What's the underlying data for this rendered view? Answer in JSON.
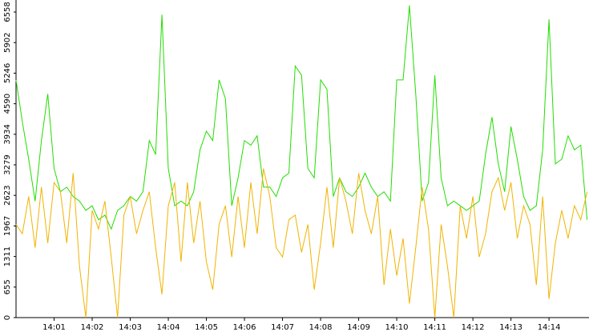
{
  "chart_data": {
    "type": "line",
    "x": [
      0,
      10,
      20,
      30,
      40,
      50,
      60,
      70,
      80,
      90,
      100,
      110,
      120,
      130,
      140,
      150,
      160,
      170,
      180,
      190,
      200,
      210,
      220,
      230,
      240,
      250,
      260,
      270,
      280,
      290,
      300,
      310,
      320,
      330,
      340,
      350,
      360,
      370,
      380,
      390,
      400,
      410,
      420,
      430,
      440,
      450,
      460,
      470,
      480,
      490,
      500,
      510,
      520,
      530,
      540,
      550,
      560,
      570,
      580,
      590,
      600,
      610,
      620,
      630,
      640,
      650,
      660,
      670,
      680,
      690,
      700,
      710,
      720,
      730,
      740,
      750,
      760,
      770,
      780,
      790,
      800,
      810,
      820,
      830,
      840,
      850,
      860,
      870,
      880,
      890,
      900
    ],
    "series": [
      {
        "color": "#22dd00",
        "values": [
          5100,
          4200,
          3400,
          2500,
          3800,
          4800,
          3200,
          2700,
          2800,
          2600,
          2500,
          2300,
          2400,
          2100,
          2200,
          1900,
          2300,
          2400,
          2600,
          2500,
          2700,
          3800,
          3500,
          6500,
          3200,
          2400,
          2500,
          2400,
          2700,
          3600,
          4000,
          3800,
          5100,
          4700,
          2400,
          3000,
          3800,
          3700,
          3900,
          2800,
          2800,
          2600,
          3000,
          3100,
          5400,
          5200,
          3200,
          3000,
          5100,
          4900,
          2600,
          3000,
          2700,
          2600,
          2800,
          3100,
          2800,
          2600,
          2700,
          2500,
          5100,
          5100,
          6700,
          4800,
          2500,
          2900,
          5200,
          3000,
          2400,
          2500,
          2400,
          2300,
          2400,
          2500,
          3500,
          4300,
          3300,
          2700,
          4100,
          3400,
          2600,
          2300,
          2400,
          3600,
          6400,
          3300,
          3400,
          3900,
          3600,
          3700,
          2100
        ]
      },
      {
        "color": "#f0b400",
        "values": [
          2000,
          1800,
          2600,
          1500,
          2800,
          1600,
          2900,
          2700,
          1600,
          3100,
          1100,
          0,
          2300,
          1900,
          2500,
          1300,
          0,
          2200,
          2600,
          1800,
          2300,
          2700,
          1500,
          500,
          2400,
          2900,
          1200,
          2900,
          1600,
          2500,
          1200,
          600,
          2000,
          2400,
          1300,
          2600,
          1500,
          2900,
          1800,
          3200,
          2600,
          1500,
          1300,
          2100,
          2200,
          1400,
          2000,
          600,
          1600,
          2800,
          1500,
          3000,
          2500,
          1800,
          3100,
          2300,
          1800,
          2600,
          700,
          1900,
          900,
          1700,
          300,
          1500,
          2800,
          1900,
          0,
          2000,
          1100,
          0,
          2400,
          1700,
          2600,
          1300,
          1800,
          2700,
          3000,
          2300,
          2900,
          1700,
          2400,
          2000,
          700,
          2600,
          400,
          1600,
          2300,
          1700,
          2400,
          2100,
          2700
        ]
      }
    ],
    "xlim": [
      0,
      903
    ],
    "xticks": [
      {
        "value": 60,
        "label": "14:01"
      },
      {
        "value": 120,
        "label": "14:02"
      },
      {
        "value": 180,
        "label": "14:03"
      },
      {
        "value": 240,
        "label": "14:04"
      },
      {
        "value": 300,
        "label": "14:05"
      },
      {
        "value": 360,
        "label": "14:06"
      },
      {
        "value": 420,
        "label": "14:07"
      },
      {
        "value": 480,
        "label": "14:08"
      },
      {
        "value": 540,
        "label": "14:09"
      },
      {
        "value": 600,
        "label": "14:10"
      },
      {
        "value": 660,
        "label": "14:11"
      },
      {
        "value": 720,
        "label": "14:12"
      },
      {
        "value": 780,
        "label": "14:13"
      },
      {
        "value": 840,
        "label": "14:14"
      }
    ],
    "ylim": [
      0,
      6816
    ],
    "yticks": [
      0,
      655,
      1311,
      1967,
      2623,
      3279,
      3934,
      4590,
      5246,
      5902,
      6558
    ]
  }
}
